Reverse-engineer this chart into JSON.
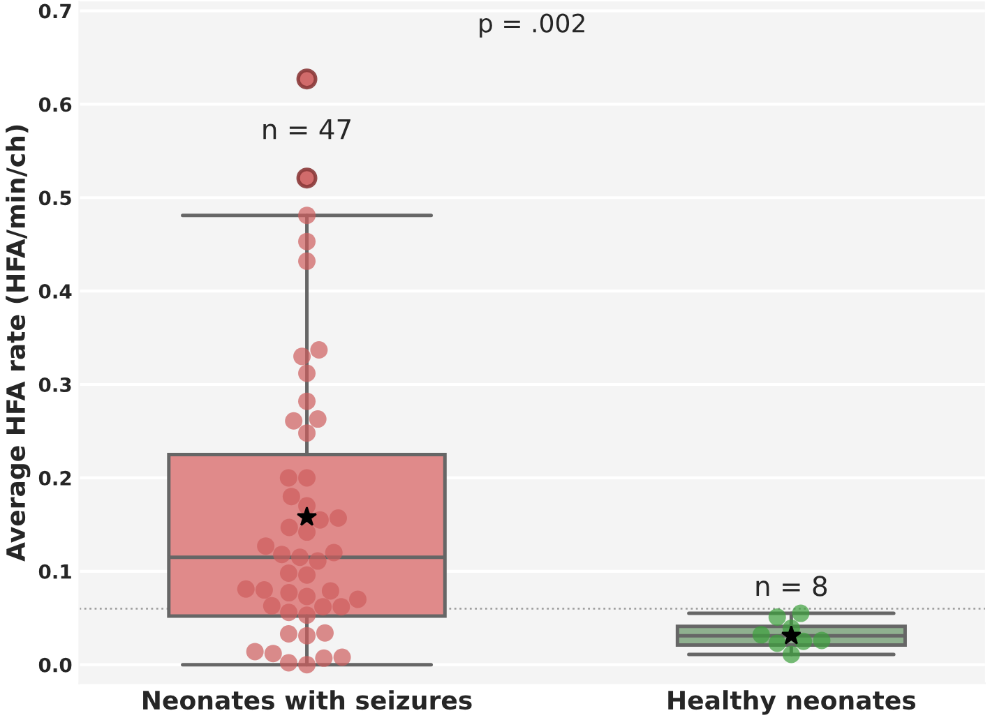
{
  "chart_data": {
    "type": "box",
    "ylabel": "Average HFA rate (HFA/min/ch)",
    "categories": [
      "Neonates with seizures",
      "Healthy neonates"
    ],
    "boxes": [
      {
        "low": 0.0,
        "q1": 0.052,
        "median": 0.115,
        "q3": 0.225,
        "high": 0.481,
        "mean": 0.158,
        "outliers": [
          0.627,
          0.521
        ]
      },
      {
        "low": 0.011,
        "q1": 0.021,
        "median": 0.031,
        "q3": 0.041,
        "high": 0.055,
        "mean": 0.031
      }
    ],
    "colors": [
      "#e08a8a",
      "#8fb08f"
    ],
    "series": [
      {
        "type": "scatter",
        "color": "#cd5c5c",
        "x": [
          "Neonates with seizures",
          "Neonates with seizures",
          "Neonates with seizures",
          "Neonates with seizures",
          "Neonates with seizures",
          "Neonates with seizures",
          "Neonates with seizures",
          "Neonates with seizures",
          "Neonates with seizures",
          "Neonates with seizures",
          "Neonates with seizures",
          "Neonates with seizures",
          "Neonates with seizures",
          "Neonates with seizures",
          "Neonates with seizures",
          "Neonates with seizures",
          "Neonates with seizures",
          "Neonates with seizures",
          "Neonates with seizures",
          "Neonates with seizures",
          "Neonates with seizures",
          "Neonates with seizures",
          "Neonates with seizures",
          "Neonates with seizures",
          "Neonates with seizures",
          "Neonates with seizures",
          "Neonates with seizures",
          "Neonates with seizures",
          "Neonates with seizures",
          "Neonates with seizures",
          "Neonates with seizures",
          "Neonates with seizures",
          "Neonates with seizures",
          "Neonates with seizures",
          "Neonates with seizures",
          "Neonates with seizures",
          "Neonates with seizures",
          "Neonates with seizures",
          "Neonates with seizures",
          "Neonates with seizures",
          "Neonates with seizures",
          "Neonates with seizures",
          "Neonates with seizures",
          "Neonates with seizures",
          "Neonates with seizures"
        ],
        "values": [
          0.481,
          0.453,
          0.432,
          0.337,
          0.33,
          0.312,
          0.282,
          0.261,
          0.263,
          0.248,
          0.2,
          0.2,
          0.18,
          0.17,
          0.155,
          0.157,
          0.142,
          0.147,
          0.127,
          0.118,
          0.115,
          0.12,
          0.111,
          0.098,
          0.096,
          0.081,
          0.08,
          0.077,
          0.079,
          0.073,
          0.07,
          0.063,
          0.062,
          0.062,
          0.056,
          0.053,
          0.034,
          0.031,
          0.033,
          0.014,
          0.008,
          0.002,
          0.0,
          0.007,
          0.012
        ]
      },
      {
        "type": "scatter",
        "color": "#3ca03c",
        "x": [
          "Healthy neonates",
          "Healthy neonates",
          "Healthy neonates",
          "Healthy neonates",
          "Healthy neonates",
          "Healthy neonates",
          "Healthy neonates",
          "Healthy neonates"
        ],
        "values": [
          0.055,
          0.051,
          0.039,
          0.032,
          0.023,
          0.025,
          0.026,
          0.011
        ]
      }
    ],
    "ylim": [
      -0.02,
      0.71
    ],
    "yticks": [
      {
        "value": 0.0,
        "label": "0.0"
      },
      0.1,
      0.2,
      0.3,
      0.4,
      0.5,
      0.6,
      0.7
    ],
    "ref_lines": [
      {
        "axis": "y",
        "value": 0.06,
        "color": "#a0a0a0",
        "line_style": "dotted"
      }
    ],
    "annotations": [
      "p = .002",
      "n = 47",
      "n = 8"
    ],
    "grid": "y"
  }
}
